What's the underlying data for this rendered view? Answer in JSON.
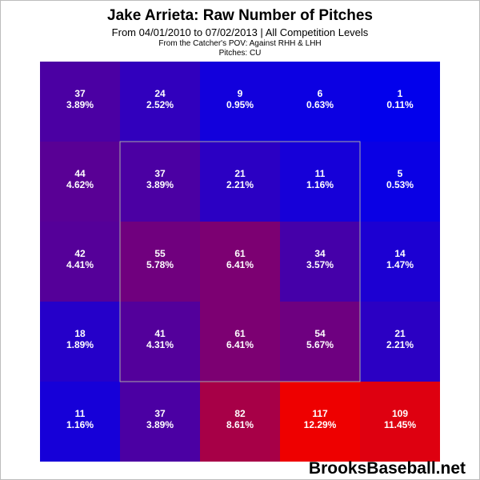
{
  "header": {
    "title": "Jake Arrieta: Raw Number of Pitches",
    "subtitle": "From 04/01/2010 to 07/02/2013 | All Competition Levels",
    "pov": "From the Catcher's POV:  Against RHH & LHH",
    "pitches": "Pitches:  CU"
  },
  "watermark": "BrooksBaseball.net",
  "colors": {
    "low": "#0000ee",
    "high": "#ee0000",
    "zone_outline": "#a8a8a8",
    "text": "#ffffff"
  },
  "chart_data": {
    "type": "heatmap",
    "title": "Jake Arrieta: Raw Number of Pitches",
    "rows": 5,
    "cols": 5,
    "strike_zone": "inner 3x3 cells",
    "cells": [
      [
        {
          "count": "37",
          "pct": "3.89%"
        },
        {
          "count": "24",
          "pct": "2.52%"
        },
        {
          "count": "9",
          "pct": "0.95%"
        },
        {
          "count": "6",
          "pct": "0.63%"
        },
        {
          "count": "1",
          "pct": "0.11%"
        }
      ],
      [
        {
          "count": "44",
          "pct": "4.62%"
        },
        {
          "count": "37",
          "pct": "3.89%"
        },
        {
          "count": "21",
          "pct": "2.21%"
        },
        {
          "count": "11",
          "pct": "1.16%"
        },
        {
          "count": "5",
          "pct": "0.53%"
        }
      ],
      [
        {
          "count": "42",
          "pct": "4.41%"
        },
        {
          "count": "55",
          "pct": "5.78%"
        },
        {
          "count": "61",
          "pct": "6.41%"
        },
        {
          "count": "34",
          "pct": "3.57%"
        },
        {
          "count": "14",
          "pct": "1.47%"
        }
      ],
      [
        {
          "count": "18",
          "pct": "1.89%"
        },
        {
          "count": "41",
          "pct": "4.31%"
        },
        {
          "count": "61",
          "pct": "6.41%"
        },
        {
          "count": "54",
          "pct": "5.67%"
        },
        {
          "count": "21",
          "pct": "2.21%"
        }
      ],
      [
        {
          "count": "11",
          "pct": "1.16%"
        },
        {
          "count": "37",
          "pct": "3.89%"
        },
        {
          "count": "82",
          "pct": "8.61%"
        },
        {
          "count": "117",
          "pct": "12.29%"
        },
        {
          "count": "109",
          "pct": "11.45%"
        }
      ]
    ]
  }
}
